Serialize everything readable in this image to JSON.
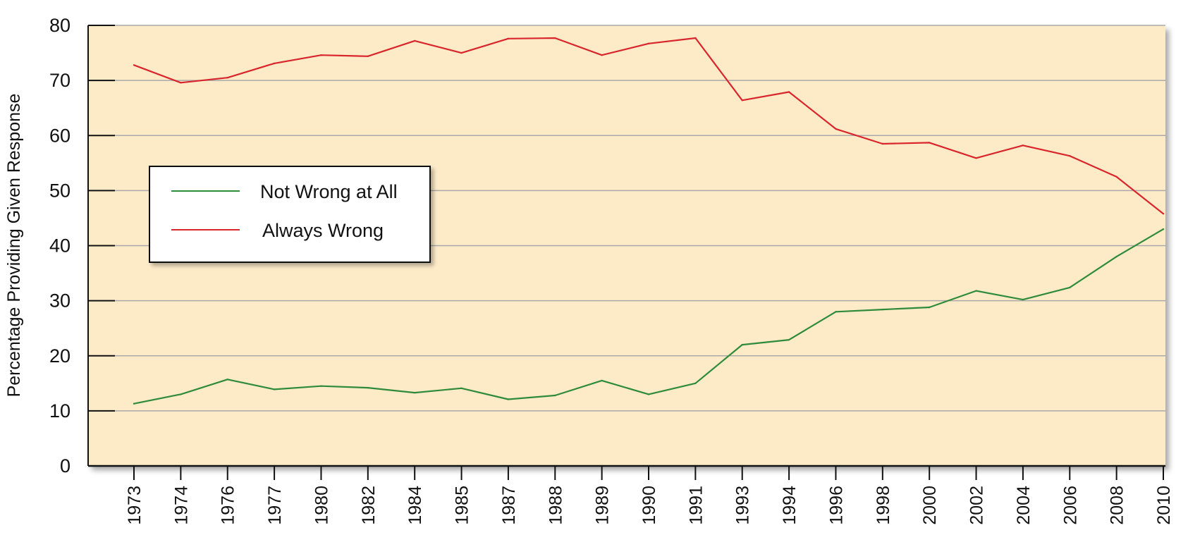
{
  "chart_data": {
    "type": "line",
    "title": "",
    "xlabel": "",
    "ylabel": "Percentage Providing Given Response",
    "ylim": [
      0,
      80
    ],
    "yticks": [
      "0",
      "10",
      "20",
      "30",
      "40",
      "50",
      "60",
      "70",
      "80"
    ],
    "categories": [
      "1973",
      "1974",
      "1976",
      "1977",
      "1980",
      "1982",
      "1984",
      "1985",
      "1987",
      "1988",
      "1989",
      "1990",
      "1991",
      "1993",
      "1994",
      "1996",
      "1998",
      "2000",
      "2002",
      "2004",
      "2006",
      "2008",
      "2010"
    ],
    "grid": true,
    "legend_position": "left",
    "series": [
      {
        "name": "Not Wrong at All",
        "color": "#2e8b3a",
        "values": [
          11.3,
          13.0,
          15.7,
          13.9,
          14.5,
          14.2,
          13.3,
          14.1,
          12.1,
          12.8,
          15.5,
          13.0,
          15.0,
          22.0,
          22.9,
          28.0,
          28.4,
          28.8,
          31.8,
          30.2,
          32.4,
          38.0,
          43.0
        ]
      },
      {
        "name": "Always Wrong",
        "color": "#d9252c",
        "values": [
          72.8,
          69.6,
          70.5,
          73.1,
          74.6,
          74.4,
          77.2,
          75.0,
          77.6,
          77.7,
          74.6,
          76.7,
          77.7,
          66.4,
          67.9,
          61.2,
          58.5,
          58.7,
          55.9,
          58.2,
          56.3,
          52.5,
          45.8
        ]
      }
    ]
  }
}
